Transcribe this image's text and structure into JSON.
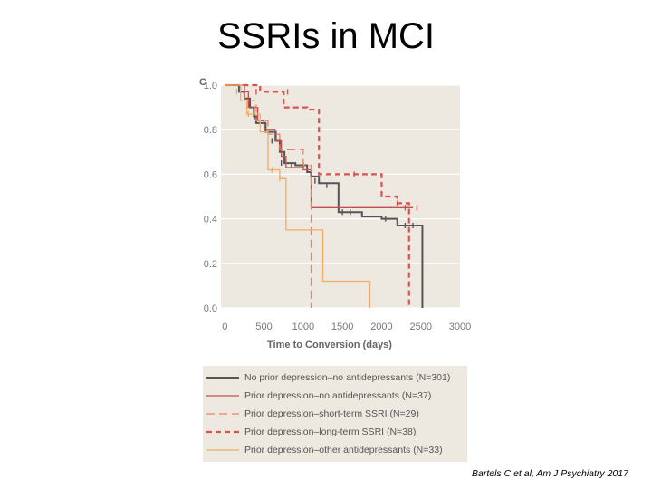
{
  "slide": {
    "title": "SSRIs in MCI",
    "citation": "Bartels C et al, Am J Psychiatry 2017"
  },
  "colors": {
    "plot_bg": "#ede9e0",
    "grid": "#ffffff",
    "no_prior": "#555555",
    "prior_no_ad": "#c0504d",
    "short_ssri": "#e8826e",
    "long_ssri": "#d9534f",
    "other_ad": "#f0ad68"
  },
  "chart_data": {
    "type": "line",
    "panel_label": "C",
    "xlabel": "Time to Conversion (days)",
    "ylabel": "",
    "xlim": [
      -50,
      3000
    ],
    "ylim": [
      0.0,
      1.0
    ],
    "xticks": [
      "0",
      "500",
      "1000",
      "1500",
      "2000",
      "2500",
      "3000"
    ],
    "yticks": [
      "0.0",
      "0.2",
      "0.4",
      "0.6",
      "0.8",
      "1.0"
    ],
    "grid": true,
    "legend_position": "bottom",
    "series": [
      {
        "name": "No prior depression–no antidepressants (N=301)",
        "key": "no_prior",
        "dash": "solid",
        "width": 2,
        "steps": [
          [
            0,
            1.0
          ],
          [
            180,
            0.97
          ],
          [
            250,
            0.94
          ],
          [
            320,
            0.9
          ],
          [
            370,
            0.86
          ],
          [
            400,
            0.83
          ],
          [
            520,
            0.79
          ],
          [
            650,
            0.75
          ],
          [
            700,
            0.7
          ],
          [
            760,
            0.65
          ],
          [
            900,
            0.64
          ],
          [
            1050,
            0.61
          ],
          [
            1100,
            0.59
          ],
          [
            1200,
            0.56
          ],
          [
            1450,
            0.43
          ],
          [
            1750,
            0.41
          ],
          [
            2000,
            0.4
          ],
          [
            2200,
            0.37
          ],
          [
            2450,
            0.37
          ],
          [
            2520,
            0.0
          ]
        ],
        "censors": [
          [
            380,
            0.86
          ],
          [
            600,
            0.75
          ],
          [
            720,
            0.65
          ],
          [
            850,
            0.64
          ],
          [
            1000,
            0.64
          ],
          [
            1150,
            0.57
          ],
          [
            1300,
            0.55
          ],
          [
            1500,
            0.43
          ],
          [
            1600,
            0.43
          ],
          [
            2050,
            0.4
          ],
          [
            2300,
            0.37
          ],
          [
            2400,
            0.37
          ]
        ]
      },
      {
        "name": "Prior depression–no antidepressants (N=37)",
        "key": "prior_no_ad",
        "dash": "solid",
        "width": 1.3,
        "steps": [
          [
            0,
            1.0
          ],
          [
            250,
            0.97
          ],
          [
            300,
            0.9
          ],
          [
            420,
            0.84
          ],
          [
            500,
            0.8
          ],
          [
            640,
            0.75
          ],
          [
            720,
            0.68
          ],
          [
            780,
            0.63
          ],
          [
            1000,
            0.62
          ],
          [
            1100,
            0.45
          ],
          [
            2400,
            0.45
          ]
        ],
        "censors": [
          [
            2300,
            0.45
          ]
        ]
      },
      {
        "name": "Prior depression–short-term SSRI (N=29)",
        "key": "short_ssri",
        "dash": "dashed",
        "width": 1.3,
        "steps": [
          [
            0,
            1.0
          ],
          [
            250,
            0.93
          ],
          [
            400,
            0.84
          ],
          [
            550,
            0.78
          ],
          [
            700,
            0.71
          ],
          [
            1000,
            0.64
          ],
          [
            1100,
            0.0
          ]
        ],
        "censors": []
      },
      {
        "name": "Prior depression–long-term SSRI (N=38)",
        "key": "long_ssri",
        "dash": "bold-dashed",
        "width": 2.2,
        "steps": [
          [
            0,
            1.0
          ],
          [
            450,
            0.97
          ],
          [
            750,
            0.9
          ],
          [
            1050,
            0.89
          ],
          [
            1200,
            0.6
          ],
          [
            1800,
            0.6
          ],
          [
            2000,
            0.5
          ],
          [
            2200,
            0.47
          ],
          [
            2350,
            0.0
          ]
        ],
        "censors": [
          [
            400,
            0.97
          ],
          [
            800,
            0.97
          ],
          [
            1650,
            0.6
          ],
          [
            2200,
            0.47
          ],
          [
            2450,
            0.45
          ]
        ]
      },
      {
        "name": "Prior depression–other antidepressants (N=33)",
        "key": "other_ad",
        "dash": "solid",
        "width": 1.3,
        "steps": [
          [
            0,
            1.0
          ],
          [
            200,
            0.93
          ],
          [
            280,
            0.87
          ],
          [
            450,
            0.79
          ],
          [
            550,
            0.62
          ],
          [
            700,
            0.58
          ],
          [
            780,
            0.35
          ],
          [
            1250,
            0.12
          ],
          [
            1850,
            0.0
          ]
        ],
        "censors": [
          [
            150,
            0.97
          ],
          [
            300,
            0.87
          ],
          [
            600,
            0.62
          ],
          [
            700,
            0.58
          ]
        ]
      }
    ]
  }
}
